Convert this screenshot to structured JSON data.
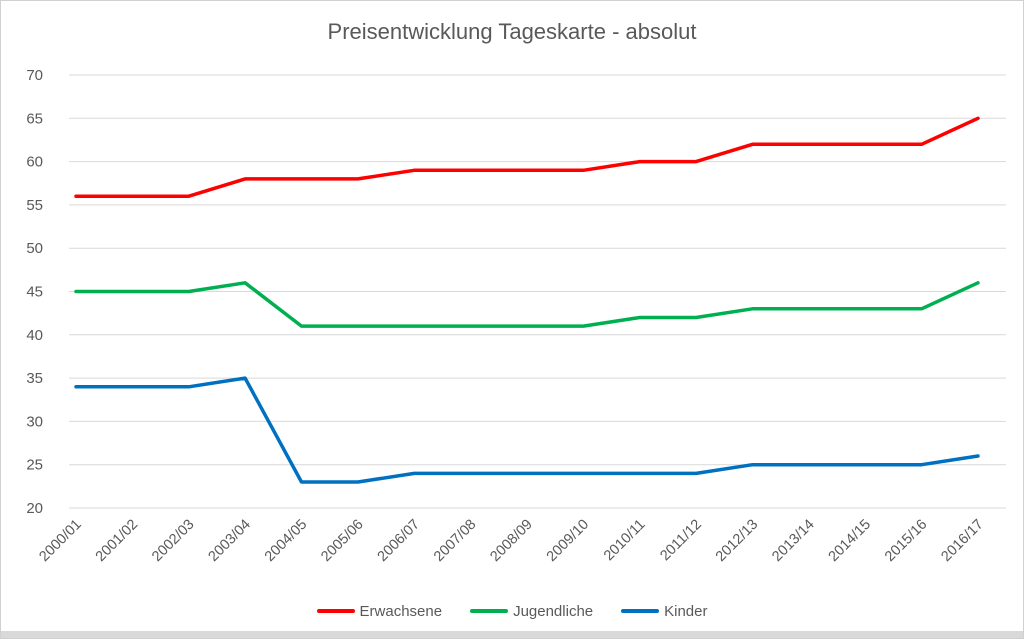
{
  "chart_data": {
    "type": "line",
    "title": "Preisentwicklung Tageskarte - absolut",
    "categories": [
      "2000/01",
      "2001/02",
      "2002/03",
      "2003/04",
      "2004/05",
      "2005/06",
      "2006/07",
      "2007/08",
      "2008/09",
      "2009/10",
      "2010/11",
      "2011/12",
      "2012/13",
      "2013/14",
      "2014/15",
      "2015/16",
      "2016/17"
    ],
    "series": [
      {
        "name": "Erwachsene",
        "color": "#FF0000",
        "values": [
          56,
          56,
          56,
          58,
          58,
          58,
          59,
          59,
          59,
          59,
          60,
          60,
          62,
          62,
          62,
          62,
          65
        ]
      },
      {
        "name": "Jugendliche",
        "color": "#00B050",
        "values": [
          45,
          45,
          45,
          46,
          41,
          41,
          41,
          41,
          41,
          41,
          42,
          42,
          43,
          43,
          43,
          43,
          46
        ]
      },
      {
        "name": "Kinder",
        "color": "#0070C0",
        "values": [
          34,
          34,
          34,
          35,
          23,
          23,
          24,
          24,
          24,
          24,
          24,
          24,
          25,
          25,
          25,
          25,
          26
        ]
      }
    ],
    "ylim": [
      20,
      70
    ],
    "yticks": [
      20,
      25,
      30,
      35,
      40,
      45,
      50,
      55,
      60,
      65,
      70
    ],
    "xlabel": "",
    "ylabel": "",
    "grid": true,
    "legend_position": "bottom",
    "grid_color": "#D9D9D9",
    "axis_text_color": "#595959",
    "title_color": "#595959",
    "x_label_rotation_deg": -45
  }
}
